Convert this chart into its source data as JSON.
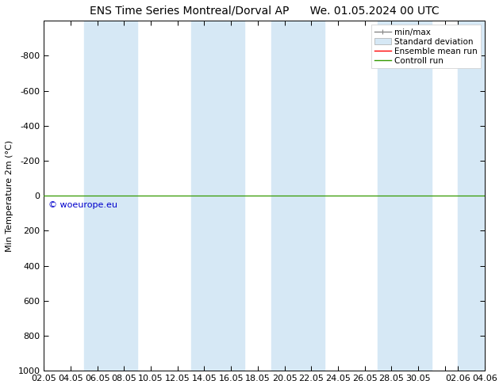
{
  "title_left": "ENS Time Series Montreal/Dorval AP",
  "title_right": "We. 01.05.2024 00 UTC",
  "ylabel": "Min Temperature 2m (°C)",
  "ylim_bottom": 1000,
  "ylim_top": -1000,
  "yticks": [
    -800,
    -600,
    -400,
    -200,
    0,
    200,
    400,
    600,
    800,
    1000
  ],
  "yticklabels": [
    "-800",
    "-600",
    "-400",
    "-200",
    "0",
    "200",
    "400",
    "600",
    "800",
    "1000"
  ],
  "xtick_labels": [
    "02.05",
    "04.05",
    "06.05",
    "08.05",
    "10.05",
    "12.05",
    "14.05",
    "16.05",
    "18.05",
    "20.05",
    "22.05",
    "24.05",
    "26.05",
    "28.05",
    "30.05",
    "",
    "02.06",
    "04.06"
  ],
  "xtick_positions": [
    0,
    2,
    4,
    6,
    8,
    10,
    12,
    14,
    16,
    18,
    20,
    22,
    24,
    26,
    28,
    30,
    31,
    33
  ],
  "x_start": 0,
  "x_end": 33,
  "band_starts": [
    3,
    5,
    11,
    13,
    17,
    19,
    25,
    27,
    31
  ],
  "band_ends": [
    5,
    7,
    13,
    15,
    19,
    21,
    27,
    29,
    33
  ],
  "band_color": "#d6e8f5",
  "control_run_y": 0,
  "control_run_color": "#339900",
  "ensemble_mean_color": "#ff0000",
  "background_color": "#ffffff",
  "watermark_text": "© woeurope.eu",
  "watermark_color": "#0000cc",
  "title_fontsize": 10,
  "axis_fontsize": 8,
  "legend_fontsize": 7.5
}
